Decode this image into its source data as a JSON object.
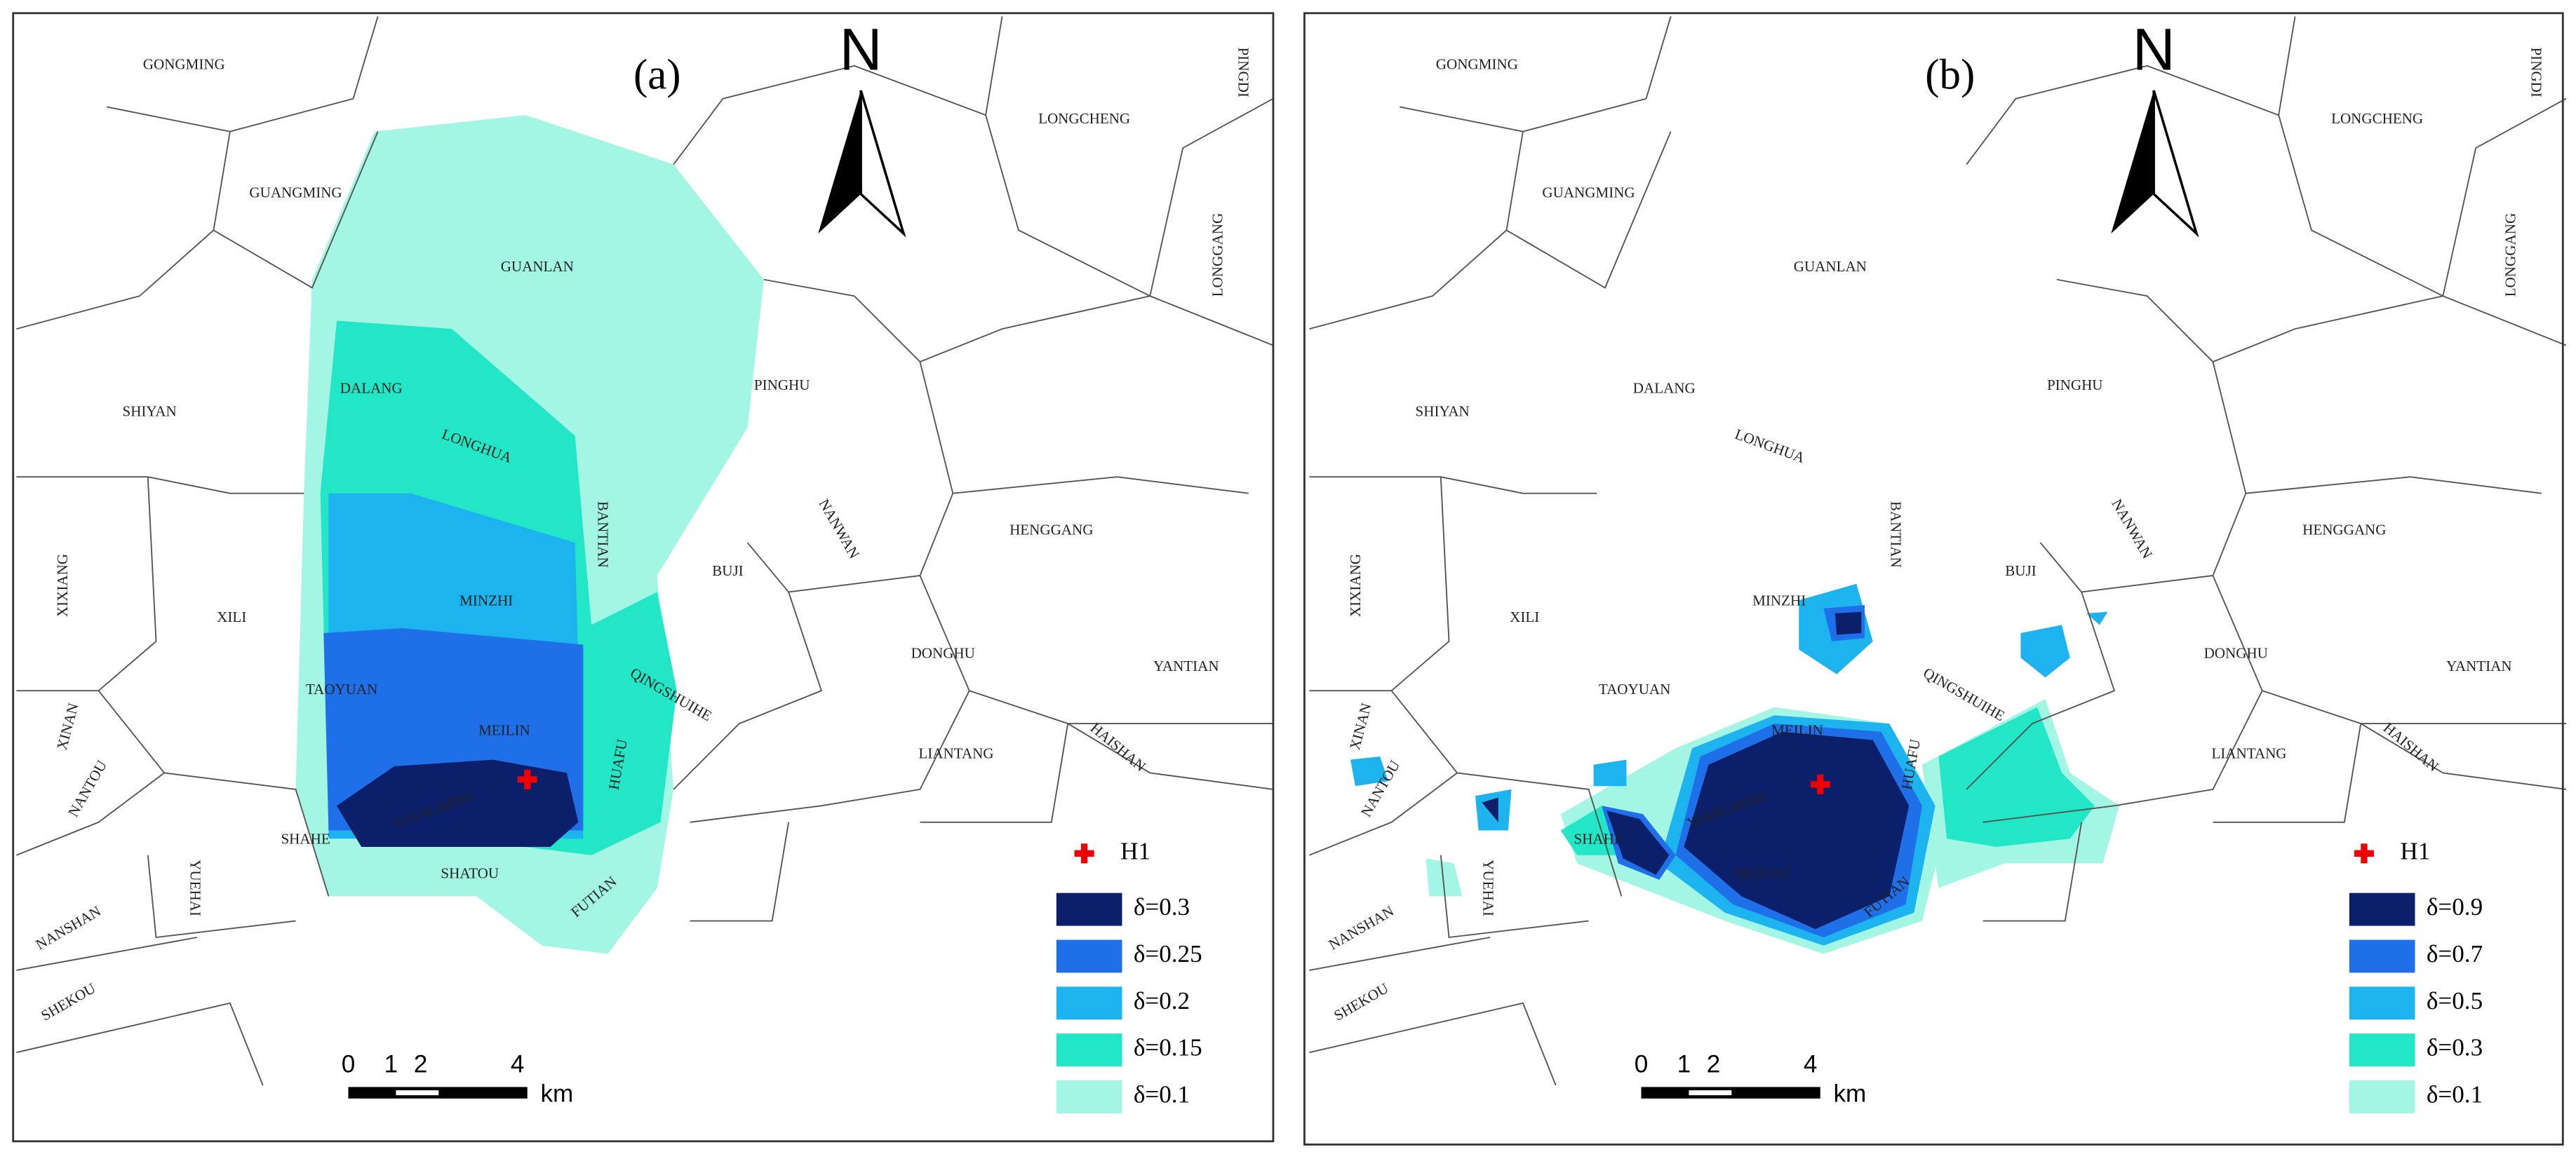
{
  "panels": [
    {
      "label": "(a)",
      "north": "N",
      "districts": [
        "GONGMING",
        "GUANGMING",
        "GUANLAN",
        "SHIYAN",
        "DALANG",
        "LONGHUA",
        "PINGHU",
        "BANTIAN",
        "NANWAN",
        "BUJI",
        "HENGGANG",
        "XIXIANG",
        "XILI",
        "MINZHI",
        "TAOYUAN",
        "DONGHU",
        "QINGSHUIHE",
        "YANTIAN",
        "XINAN",
        "MEILIN",
        "HUAFU",
        "LIANTANG",
        "HAISHAN",
        "NANTOU",
        "XIANGMIHU",
        "YUEHAI",
        "SHAHE",
        "SHATOU",
        "FUTIAN",
        "NANSHAN",
        "SHEKOU",
        "LONGCHENG",
        "PINGDI",
        "LONGGANG"
      ],
      "legend": {
        "marker": "H1",
        "items": [
          {
            "label": "δ=0.3",
            "color": "#0b1f6b"
          },
          {
            "label": "δ=0.25",
            "color": "#1f6fe8"
          },
          {
            "label": "δ=0.2",
            "color": "#1cb3ee"
          },
          {
            "label": "δ=0.15",
            "color": "#22e6c6"
          },
          {
            "label": "δ=0.1",
            "color": "#a3f5e4"
          }
        ]
      },
      "scale": {
        "ticks": [
          "0",
          "1",
          "2",
          "4"
        ],
        "unit": "km"
      }
    },
    {
      "label": "(b)",
      "north": "N",
      "districts": [
        "GONGMING",
        "GUANGMING",
        "GUANLAN",
        "SHIYAN",
        "DALANG",
        "LONGHUA",
        "PINGHU",
        "BANTIAN",
        "NANWAN",
        "BUJI",
        "HENGGANG",
        "XIXIANG",
        "XILI",
        "MINZHI",
        "TAOYUAN",
        "DONGHU",
        "QINGSHUIHE",
        "YANTIAN",
        "XINAN",
        "MEILIN",
        "HUAFU",
        "LIANTANG",
        "HAISHAN",
        "NANTOU",
        "XIANGMIHU",
        "YUEHAI",
        "SHAHE",
        "SHATOU",
        "FUTIAN",
        "NANSHAN",
        "SHEKOU",
        "LONGCHENG",
        "PINGDI",
        "LONGGANG"
      ],
      "legend": {
        "marker": "H1",
        "items": [
          {
            "label": "δ=0.9",
            "color": "#0b1f6b"
          },
          {
            "label": "δ=0.7",
            "color": "#1f6fe8"
          },
          {
            "label": "δ=0.5",
            "color": "#1cb3ee"
          },
          {
            "label": "δ=0.3",
            "color": "#22e6c6"
          },
          {
            "label": "δ=0.1",
            "color": "#a3f5e4"
          }
        ]
      },
      "scale": {
        "ticks": [
          "0",
          "1",
          "2",
          "4"
        ],
        "unit": "km"
      }
    }
  ]
}
